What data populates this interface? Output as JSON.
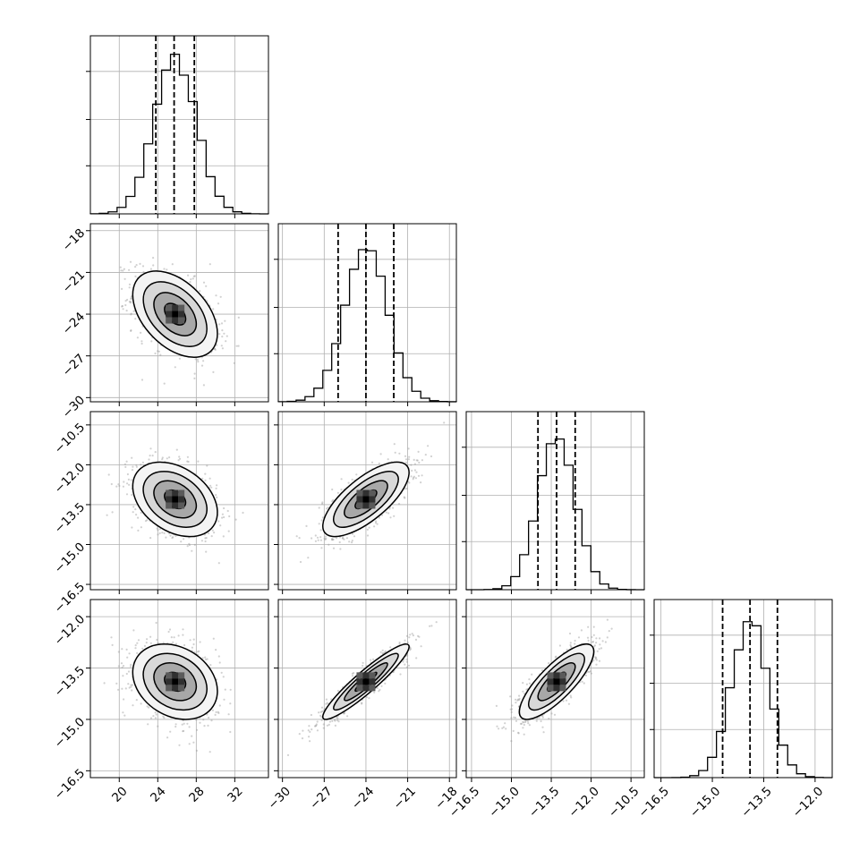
{
  "chart_data": {
    "type": "corner",
    "description_source": "corner plot of 4 parameters",
    "grid": true,
    "params": [
      {
        "range": [
          17.0,
          35.5
        ],
        "ticks": [
          20,
          24,
          28,
          32
        ],
        "tick_labels": [
          "20",
          "24",
          "28",
          "32"
        ],
        "quantiles": [
          23.8,
          25.7,
          27.8
        ],
        "mean": 25.8,
        "sd": 2.2,
        "label": ""
      },
      {
        "range": [
          -30.3,
          -17.5
        ],
        "ticks": [
          -30,
          -27,
          -24,
          -21,
          -18
        ],
        "tick_labels": [
          "−30",
          "−27",
          "−24",
          "−21",
          "−18"
        ],
        "quantiles": [
          -26.0,
          -24.0,
          -22.0
        ],
        "mean": -24.0,
        "sd": 1.55,
        "label": ""
      },
      {
        "range": [
          -16.7,
          -10.0
        ],
        "ticks": [
          -16.5,
          -15.0,
          -13.5,
          -12.0,
          -10.5
        ],
        "tick_labels": [
          "−16.5",
          "−15.0",
          "−13.5",
          "−12.0",
          "−10.5"
        ],
        "quantiles": [
          -14.0,
          -13.3,
          -12.6
        ],
        "mean": -13.3,
        "sd": 0.7,
        "label": ""
      },
      {
        "range": [
          -16.7,
          -11.5
        ],
        "ticks": [
          -16.5,
          -15.0,
          -13.5,
          -12.0
        ],
        "tick_labels": [
          "−16.5",
          "−15.0",
          "−13.5",
          "−12.0"
        ],
        "quantiles": [
          -14.7,
          -13.9,
          -13.1
        ],
        "mean": -13.9,
        "sd": 0.55,
        "label": ""
      }
    ],
    "correlations": [
      [
        1.0,
        -0.45,
        -0.35,
        -0.25
      ],
      [
        -0.45,
        1.0,
        0.72,
        0.93
      ],
      [
        -0.35,
        0.72,
        1.0,
        0.8
      ],
      [
        -0.25,
        0.93,
        0.8,
        1.0
      ]
    ],
    "contour_levels_sigma": [
      0.5,
      1.0,
      1.5,
      2.0
    ],
    "colors": {
      "density": "#000000",
      "points": "#999999",
      "grid": "#b0b0b0",
      "frame": "#000000"
    }
  }
}
